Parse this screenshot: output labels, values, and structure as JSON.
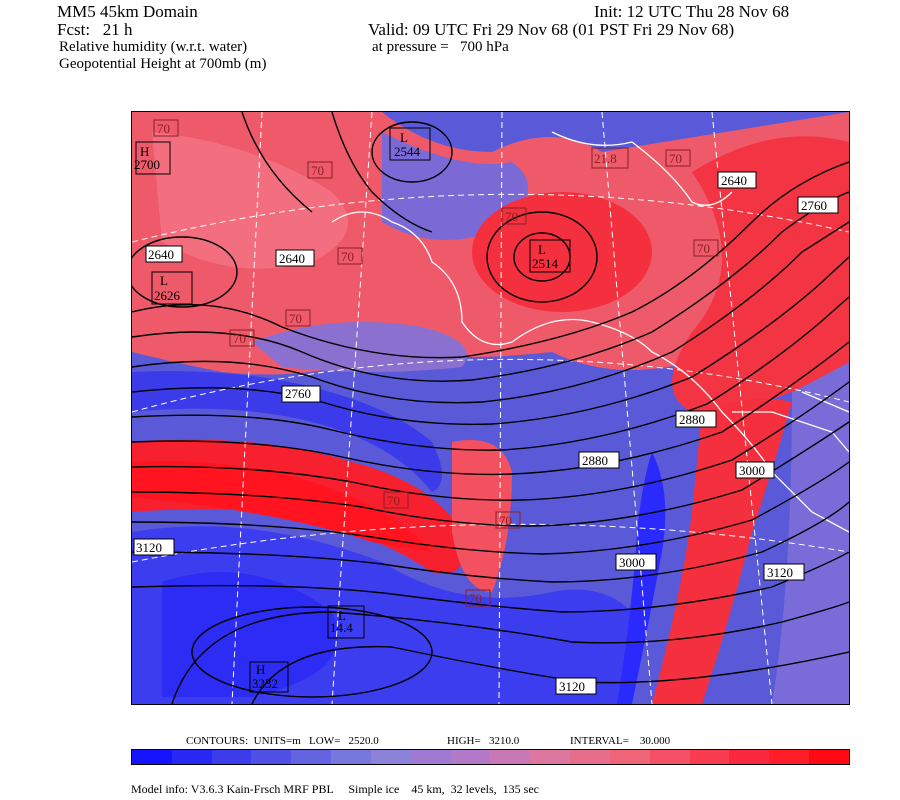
{
  "header": {
    "domain": "MM5 45km Domain",
    "fcst": "Fcst:   21 h",
    "field1": "Relative humidity (w.r.t. water)",
    "field2": "Geopotential Height at 700mb (m)",
    "init": "Init: 12 UTC Thu 28 Nov 68",
    "valid": "Valid: 09 UTC Fri 29 Nov 68 (01 PST Fri 29 Nov 68)",
    "pressure": "at pressure =   700 hPa"
  },
  "contours_info": {
    "units": "CONTOURS:  UNITS=m   LOW=   2520.0",
    "high": "HIGH=   3210.0",
    "interval": "INTERVAL=    30.000"
  },
  "model_info": "Model info: V3.6.3 Kain-Frsch MRF PBL     Simple ice    45 km,  32 levels,  135 sec",
  "colorbar": {
    "colors": [
      "#1414ff",
      "#2828f5",
      "#3c3ceb",
      "#5050e6",
      "#6464e1",
      "#7878dc",
      "#8c82d7",
      "#a07ad2",
      "#b478c8",
      "#c878b4",
      "#dc78a0",
      "#e66e8c",
      "#f06478",
      "#f55064",
      "#fa3c50",
      "#fa283c",
      "#ff1e28",
      "#ff0a14"
    ]
  },
  "map_labels": {
    "highs": [
      {
        "text": "H",
        "value": "2700"
      },
      {
        "text": "H",
        "value": "3232"
      }
    ],
    "lows": [
      {
        "text": "L",
        "value": "2544"
      },
      {
        "text": "L",
        "value": "2626"
      },
      {
        "text": "L",
        "value": "2514"
      },
      {
        "text": "L",
        "value": "14.4"
      }
    ],
    "heights": [
      "2640",
      "2640",
      "2760",
      "2640",
      "2760",
      "2880",
      "2880",
      "3000",
      "3000",
      "3120",
      "3120",
      "3120"
    ],
    "rh": [
      "70",
      "70",
      "70",
      "70",
      "70",
      "70",
      "70",
      "70",
      "70",
      "70",
      "70",
      "21.8"
    ]
  }
}
